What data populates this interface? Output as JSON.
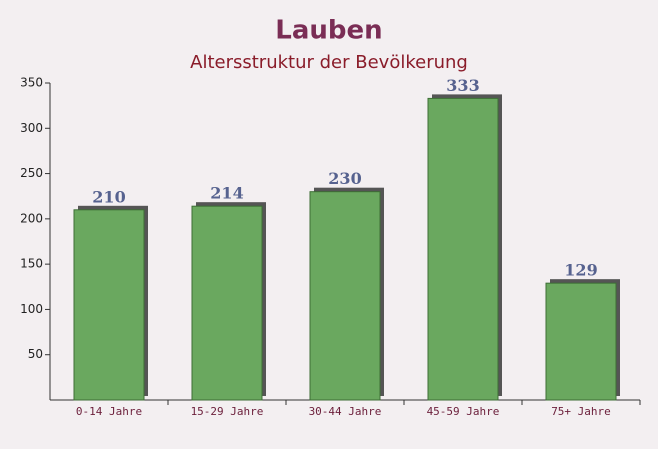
{
  "chart_data": {
    "type": "bar",
    "title": "Lauben",
    "subtitle": "Altersstruktur der Bevölkerung",
    "categories": [
      "0-14 Jahre",
      "15-29 Jahre",
      "30-44 Jahre",
      "45-59 Jahre",
      "75+ Jahre"
    ],
    "values": [
      210,
      214,
      230,
      333,
      129
    ],
    "color": "#6aa85f",
    "ylim": [
      0,
      350
    ],
    "yticks": [
      50,
      100,
      150,
      200,
      250,
      300,
      350
    ],
    "grid": false
  }
}
